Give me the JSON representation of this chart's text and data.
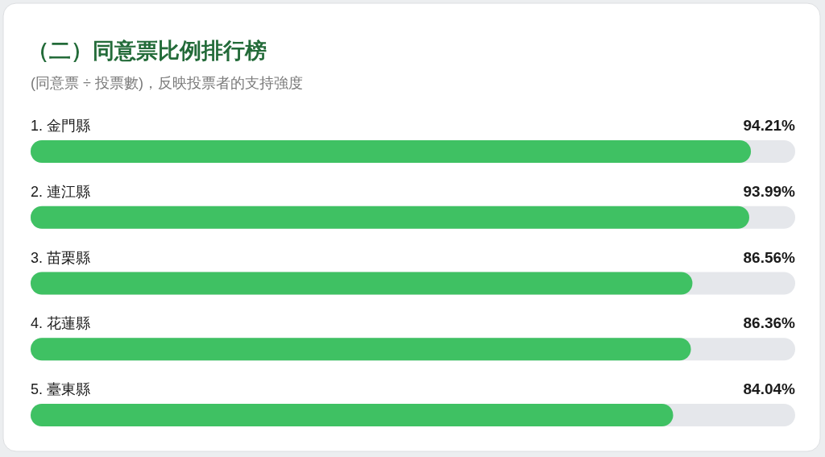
{
  "chart_data": {
    "type": "bar",
    "orientation": "horizontal",
    "title": "（二）同意票比例排行榜",
    "subtitle": "(同意票 ÷ 投票數)，反映投票者的支持強度",
    "categories": [
      "1. 金門縣",
      "2. 連江縣",
      "3. 苗栗縣",
      "4. 花蓮縣",
      "5. 臺東縣"
    ],
    "values": [
      94.21,
      93.99,
      86.56,
      86.36,
      84.04
    ],
    "color": "#3fc163",
    "value_labels": [
      "94.21%",
      "93.99%",
      "86.56%",
      "86.36%",
      "84.04%"
    ],
    "xlim": [
      0,
      100
    ],
    "tick_labels": "y"
  }
}
